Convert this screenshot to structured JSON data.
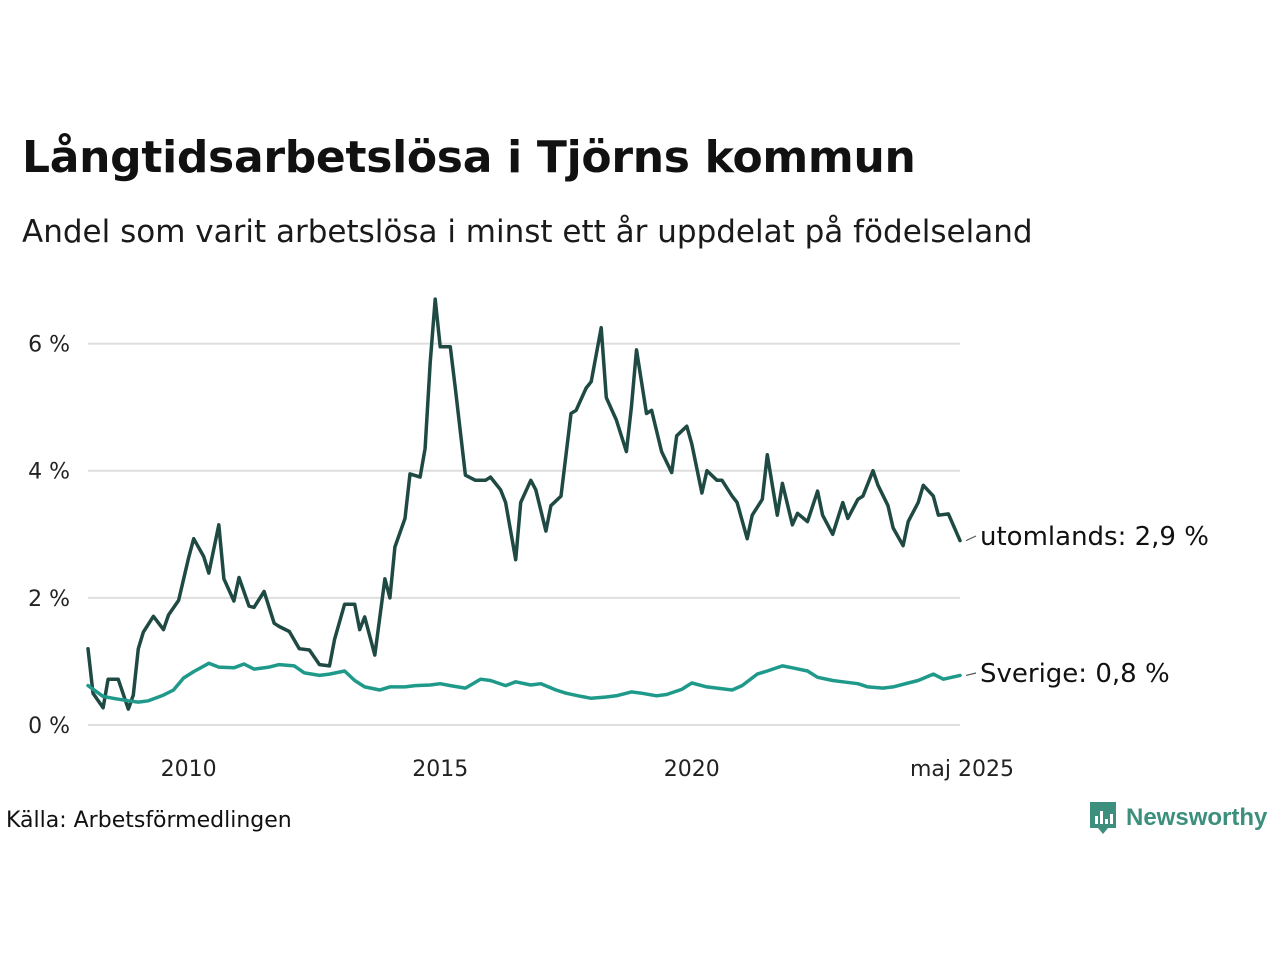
{
  "title": "Långtidsarbetslösa i Tjörns kommun",
  "subtitle": "Andel som varit arbetslösa i minst ett år uppdelat på födelseland",
  "source": "Källa: Arbetsförmedlingen",
  "brand": "Newsworthy",
  "chart_data": {
    "type": "line",
    "title": "Långtidsarbetslösa i Tjörns kommun",
    "subtitle": "Andel som varit arbetslösa i minst ett år uppdelat på födelseland",
    "xlabel": "",
    "ylabel": "",
    "xlim": [
      2008.0,
      2025.33
    ],
    "ylim": [
      0,
      7
    ],
    "y_ticks": [
      0,
      2,
      4,
      6
    ],
    "y_tick_labels": [
      "0 %",
      "2 %",
      "4 %",
      "6 %"
    ],
    "x_ticks": [
      2010,
      2015,
      2020,
      2025.33
    ],
    "x_tick_labels": [
      "2010",
      "2015",
      "2020",
      "maj 2025"
    ],
    "grid": true,
    "legend": "end-labels",
    "series": [
      {
        "name": "utomlands",
        "end_label": "utomlands: 2,9 %",
        "color": "#1f4a43",
        "x": [
          2008.0,
          2008.1,
          2008.3,
          2008.4,
          2008.6,
          2008.8,
          2008.9,
          2009.0,
          2009.1,
          2009.3,
          2009.5,
          2009.6,
          2009.8,
          2010.0,
          2010.1,
          2010.3,
          2010.4,
          2010.6,
          2010.7,
          2010.9,
          2011.0,
          2011.2,
          2011.3,
          2011.5,
          2011.7,
          2011.8,
          2012.0,
          2012.2,
          2012.4,
          2012.6,
          2012.8,
          2012.9,
          2013.1,
          2013.3,
          2013.4,
          2013.5,
          2013.7,
          2013.9,
          2014.0,
          2014.1,
          2014.3,
          2014.4,
          2014.6,
          2014.7,
          2014.8,
          2014.9,
          2015.0,
          2015.2,
          2015.3,
          2015.5,
          2015.7,
          2015.9,
          2016.0,
          2016.2,
          2016.3,
          2016.5,
          2016.6,
          2016.8,
          2016.9,
          2017.1,
          2017.2,
          2017.4,
          2017.6,
          2017.7,
          2017.9,
          2018.0,
          2018.2,
          2018.3,
          2018.5,
          2018.7,
          2018.8,
          2018.9,
          2019.1,
          2019.2,
          2019.4,
          2019.6,
          2019.7,
          2019.9,
          2020.0,
          2020.2,
          2020.3,
          2020.5,
          2020.6,
          2020.8,
          2020.9,
          2021.1,
          2021.2,
          2021.4,
          2021.5,
          2021.7,
          2021.8,
          2022.0,
          2022.1,
          2022.3,
          2022.5,
          2022.6,
          2022.8,
          2023.0,
          2023.1,
          2023.3,
          2023.4,
          2023.6,
          2023.7,
          2023.9,
          2024.0,
          2024.2,
          2024.3,
          2024.5,
          2024.6,
          2024.8,
          2024.9,
          2025.1,
          2025.33
        ],
        "values": [
          1.2,
          0.5,
          0.27,
          0.72,
          0.72,
          0.25,
          0.47,
          1.2,
          1.46,
          1.71,
          1.5,
          1.73,
          1.96,
          2.63,
          2.93,
          2.65,
          2.39,
          3.15,
          2.3,
          1.95,
          2.32,
          1.87,
          1.85,
          2.1,
          1.6,
          1.55,
          1.47,
          1.2,
          1.18,
          0.95,
          0.93,
          1.35,
          1.9,
          1.9,
          1.5,
          1.7,
          1.1,
          2.3,
          2.0,
          2.8,
          3.25,
          3.95,
          3.9,
          4.35,
          5.7,
          6.7,
          5.95,
          5.95,
          5.3,
          3.93,
          3.85,
          3.85,
          3.9,
          3.7,
          3.5,
          2.6,
          3.5,
          3.85,
          3.7,
          3.05,
          3.45,
          3.6,
          4.9,
          4.95,
          5.3,
          5.4,
          6.25,
          5.15,
          4.8,
          4.3,
          5.0,
          5.9,
          4.9,
          4.95,
          4.3,
          3.97,
          4.55,
          4.7,
          4.42,
          3.65,
          4.0,
          3.85,
          3.85,
          3.6,
          3.5,
          2.93,
          3.3,
          3.55,
          4.25,
          3.3,
          3.8,
          3.15,
          3.33,
          3.2,
          3.68,
          3.3,
          3.0,
          3.5,
          3.25,
          3.55,
          3.6,
          4.0,
          3.77,
          3.45,
          3.1,
          2.82,
          3.2,
          3.5,
          3.77,
          3.6,
          3.3,
          3.32,
          2.9
        ]
      },
      {
        "name": "Sverige",
        "end_label": "Sverige: 0,8 %",
        "color": "#1f9a8a",
        "x": [
          2008.0,
          2008.3,
          2008.5,
          2008.8,
          2009.0,
          2009.2,
          2009.5,
          2009.7,
          2009.9,
          2010.1,
          2010.4,
          2010.6,
          2010.9,
          2011.1,
          2011.3,
          2011.6,
          2011.8,
          2012.1,
          2012.3,
          2012.6,
          2012.8,
          2013.1,
          2013.3,
          2013.5,
          2013.8,
          2014.0,
          2014.3,
          2014.5,
          2014.8,
          2015.0,
          2015.2,
          2015.5,
          2015.8,
          2016.0,
          2016.3,
          2016.5,
          2016.8,
          2017.0,
          2017.3,
          2017.5,
          2017.8,
          2018.0,
          2018.3,
          2018.5,
          2018.8,
          2019.0,
          2019.3,
          2019.5,
          2019.8,
          2020.0,
          2020.3,
          2020.5,
          2020.8,
          2021.0,
          2021.3,
          2021.5,
          2021.8,
          2022.0,
          2022.3,
          2022.5,
          2022.8,
          2023.0,
          2023.3,
          2023.5,
          2023.8,
          2024.0,
          2024.3,
          2024.5,
          2024.8,
          2025.0,
          2025.33
        ],
        "values": [
          0.62,
          0.45,
          0.42,
          0.38,
          0.36,
          0.38,
          0.47,
          0.55,
          0.74,
          0.84,
          0.97,
          0.91,
          0.9,
          0.96,
          0.88,
          0.91,
          0.95,
          0.93,
          0.82,
          0.78,
          0.8,
          0.85,
          0.7,
          0.6,
          0.55,
          0.6,
          0.6,
          0.62,
          0.63,
          0.65,
          0.62,
          0.58,
          0.72,
          0.7,
          0.62,
          0.68,
          0.63,
          0.65,
          0.55,
          0.5,
          0.45,
          0.42,
          0.44,
          0.46,
          0.52,
          0.5,
          0.46,
          0.48,
          0.56,
          0.66,
          0.6,
          0.58,
          0.55,
          0.62,
          0.8,
          0.85,
          0.93,
          0.9,
          0.85,
          0.75,
          0.7,
          0.68,
          0.65,
          0.6,
          0.58,
          0.6,
          0.66,
          0.7,
          0.8,
          0.72,
          0.78
        ]
      }
    ]
  }
}
